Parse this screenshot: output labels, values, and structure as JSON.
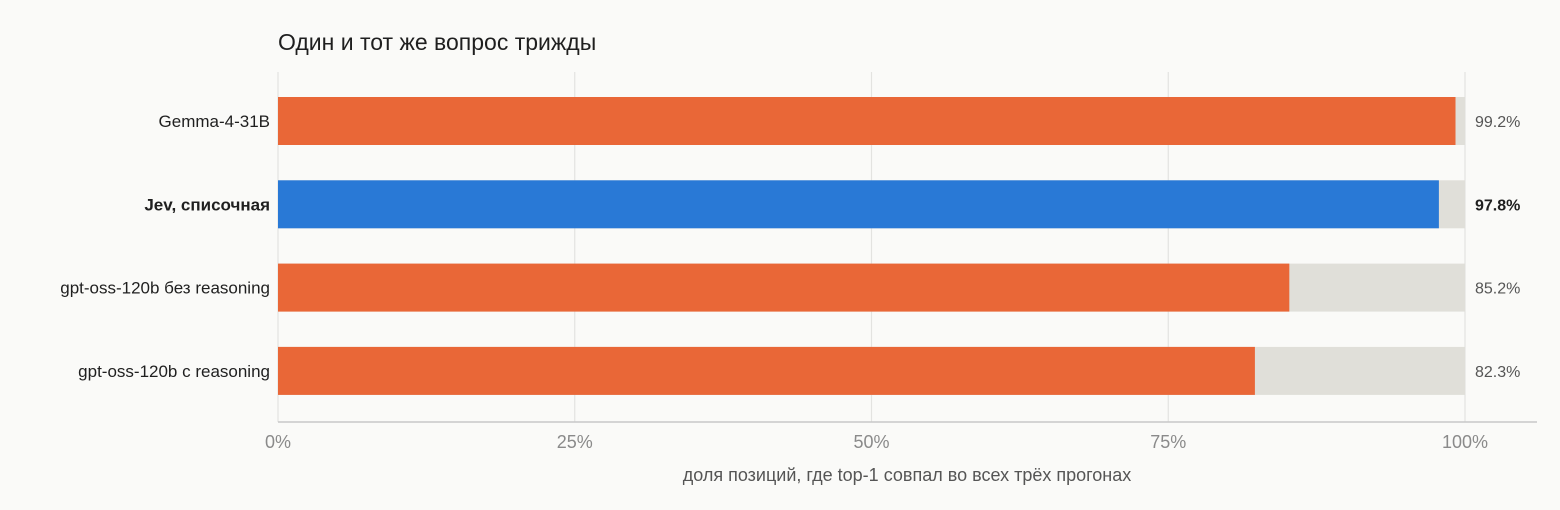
{
  "chart_data": {
    "type": "bar",
    "orientation": "horizontal",
    "title": "Один и тот же вопрос трижды",
    "xlabel": "доля позиций, где top-1 совпал во всех трёх прогонах",
    "ylabel": "",
    "xlim": [
      0,
      100
    ],
    "xticks": [
      0,
      25,
      50,
      75,
      100
    ],
    "xtick_labels": [
      "0%",
      "25%",
      "50%",
      "75%",
      "100%"
    ],
    "grid": true,
    "categories": [
      "Gemma-4-31B",
      "Jev, списочная",
      "gpt-oss-120b без reasoning",
      "gpt-oss-120b с reasoning"
    ],
    "values": [
      99.2,
      97.8,
      85.2,
      82.3
    ],
    "value_labels": [
      "99.2%",
      "97.8%",
      "85.2%",
      "82.3%"
    ],
    "highlighted": [
      false,
      true,
      false,
      false
    ],
    "colors": {
      "bar": "#e96737",
      "highlight": "#2979d6",
      "track": "#e0dfd9",
      "grid": "#e3e3e0",
      "axis": "#c8c8c8"
    }
  }
}
